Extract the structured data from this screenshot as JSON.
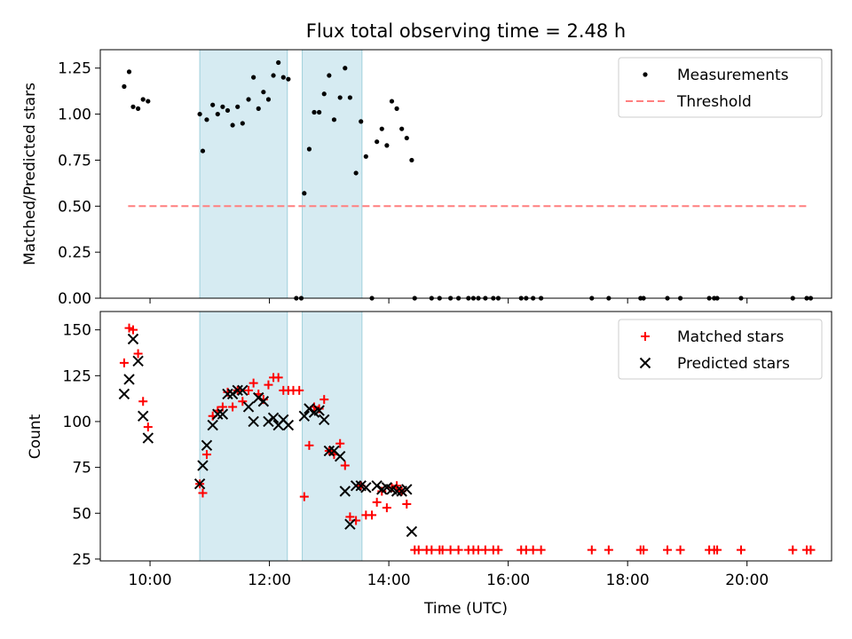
{
  "figure": {
    "title": "Flux total observing time = 2.48 h"
  },
  "chart_data": [
    {
      "type": "scatter",
      "panel": "top",
      "ylabel": "Matched/Predicted stars",
      "xlabel": "",
      "xlim": [
        "09:10",
        "21:25"
      ],
      "ylim": [
        0,
        1.35
      ],
      "y_ticks": [
        "0.00",
        "0.25",
        "0.50",
        "0.75",
        "1.00",
        "1.25"
      ],
      "shaded_intervals": [
        [
          "10:50",
          "12:18"
        ],
        [
          "12:33",
          "13:33"
        ]
      ],
      "legend_position": "top-right",
      "legend": [
        "Measurements",
        "Threshold"
      ],
      "series": [
        {
          "name": "Measurements",
          "marker": "dot",
          "color": "#000000",
          "points": [
            [
              "09:34",
              1.15
            ],
            [
              "09:39",
              1.23
            ],
            [
              "09:43",
              1.04
            ],
            [
              "09:48",
              1.03
            ],
            [
              "09:53",
              1.08
            ],
            [
              "09:58",
              1.07
            ],
            [
              "10:50",
              1.0
            ],
            [
              "10:53",
              0.8
            ],
            [
              "10:57",
              0.97
            ],
            [
              "11:03",
              1.05
            ],
            [
              "11:08",
              1.0
            ],
            [
              "11:13",
              1.04
            ],
            [
              "11:18",
              1.02
            ],
            [
              "11:23",
              0.94
            ],
            [
              "11:28",
              1.04
            ],
            [
              "11:33",
              0.95
            ],
            [
              "11:39",
              1.08
            ],
            [
              "11:44",
              1.2
            ],
            [
              "11:49",
              1.03
            ],
            [
              "11:54",
              1.12
            ],
            [
              "11:59",
              1.08
            ],
            [
              "12:04",
              1.21
            ],
            [
              "12:09",
              1.28
            ],
            [
              "12:14",
              1.2
            ],
            [
              "12:19",
              1.19
            ],
            [
              "12:35",
              0.57
            ],
            [
              "12:40",
              0.81
            ],
            [
              "12:45",
              1.01
            ],
            [
              "12:50",
              1.01
            ],
            [
              "12:55",
              1.11
            ],
            [
              "13:00",
              1.21
            ],
            [
              "13:05",
              0.97
            ],
            [
              "13:11",
              1.09
            ],
            [
              "13:16",
              1.25
            ],
            [
              "13:21",
              1.09
            ],
            [
              "13:27",
              0.68
            ],
            [
              "13:32",
              0.96
            ],
            [
              "13:37",
              0.77
            ],
            [
              "13:48",
              0.85
            ],
            [
              "13:53",
              0.92
            ],
            [
              "13:58",
              0.83
            ],
            [
              "14:03",
              1.07
            ],
            [
              "14:08",
              1.03
            ],
            [
              "14:13",
              0.92
            ],
            [
              "14:18",
              0.87
            ],
            [
              "14:23",
              0.75
            ],
            [
              "12:27",
              0.0
            ],
            [
              "12:32",
              0.0
            ],
            [
              "13:43",
              0.0
            ],
            [
              "14:26",
              0.0
            ],
            [
              "14:43",
              0.0
            ],
            [
              "14:51",
              0.0
            ],
            [
              "15:02",
              0.0
            ],
            [
              "15:10",
              0.0
            ],
            [
              "15:20",
              0.0
            ],
            [
              "15:25",
              0.0
            ],
            [
              "15:30",
              0.0
            ],
            [
              "15:37",
              0.0
            ],
            [
              "15:45",
              0.0
            ],
            [
              "15:50",
              0.0
            ],
            [
              "16:13",
              0.0
            ],
            [
              "16:18",
              0.0
            ],
            [
              "16:25",
              0.0
            ],
            [
              "16:33",
              0.0
            ],
            [
              "17:24",
              0.0
            ],
            [
              "17:41",
              0.0
            ],
            [
              "18:13",
              0.0
            ],
            [
              "18:16",
              0.0
            ],
            [
              "18:40",
              0.0
            ],
            [
              "18:53",
              0.0
            ],
            [
              "19:22",
              0.0
            ],
            [
              "19:27",
              0.0
            ],
            [
              "19:30",
              0.0
            ],
            [
              "19:54",
              0.0
            ],
            [
              "20:46",
              0.0
            ],
            [
              "21:00",
              0.0
            ],
            [
              "21:04",
              0.0
            ]
          ]
        },
        {
          "name": "Threshold",
          "style": "dashed line",
          "color": "#ff7f7f",
          "points": [
            [
              "09:38",
              0.5
            ],
            [
              "21:00",
              0.5
            ]
          ]
        }
      ]
    },
    {
      "type": "scatter",
      "panel": "bottom",
      "ylabel": "Count",
      "xlabel": "Time (UTC)",
      "xlim": [
        "09:10",
        "21:25"
      ],
      "ylim": [
        24,
        160
      ],
      "x_ticks": [
        "10:00",
        "12:00",
        "14:00",
        "16:00",
        "18:00",
        "20:00"
      ],
      "y_ticks": [
        "25",
        "50",
        "75",
        "100",
        "125",
        "150"
      ],
      "shaded_intervals": [
        [
          "10:50",
          "12:18"
        ],
        [
          "12:33",
          "13:33"
        ]
      ],
      "legend_position": "top-right",
      "legend": [
        "Matched stars",
        "Predicted stars"
      ],
      "series": [
        {
          "name": "Matched stars",
          "marker": "plus",
          "color": "#ff0000",
          "points": [
            [
              "09:34",
              132
            ],
            [
              "09:39",
              151
            ],
            [
              "09:43",
              150
            ],
            [
              "09:48",
              137
            ],
            [
              "09:53",
              111
            ],
            [
              "09:58",
              97
            ],
            [
              "10:50",
              66
            ],
            [
              "10:53",
              61
            ],
            [
              "10:57",
              82
            ],
            [
              "11:03",
              103
            ],
            [
              "11:08",
              106
            ],
            [
              "11:13",
              108
            ],
            [
              "11:18",
              116
            ],
            [
              "11:23",
              108
            ],
            [
              "11:28",
              117
            ],
            [
              "11:33",
              111
            ],
            [
              "11:39",
              117
            ],
            [
              "11:44",
              121
            ],
            [
              "11:49",
              115
            ],
            [
              "11:54",
              112
            ],
            [
              "11:59",
              120
            ],
            [
              "12:04",
              124
            ],
            [
              "12:09",
              124
            ],
            [
              "12:14",
              117
            ],
            [
              "12:19",
              117
            ],
            [
              "12:24",
              117
            ],
            [
              "12:30",
              117
            ],
            [
              "12:35",
              59
            ],
            [
              "12:40",
              87
            ],
            [
              "12:45",
              108
            ],
            [
              "12:50",
              107
            ],
            [
              "12:55",
              112
            ],
            [
              "13:00",
              84
            ],
            [
              "13:05",
              82
            ],
            [
              "13:11",
              88
            ],
            [
              "13:16",
              76
            ],
            [
              "13:21",
              48
            ],
            [
              "13:27",
              46
            ],
            [
              "13:32",
              65
            ],
            [
              "13:37",
              49
            ],
            [
              "13:43",
              49
            ],
            [
              "13:48",
              56
            ],
            [
              "13:53",
              62
            ],
            [
              "13:58",
              53
            ],
            [
              "14:03",
              64
            ],
            [
              "14:08",
              65
            ],
            [
              "14:13",
              62
            ],
            [
              "14:18",
              55
            ],
            [
              "14:26",
              30
            ],
            [
              "14:30",
              30
            ],
            [
              "14:38",
              30
            ],
            [
              "14:43",
              30
            ],
            [
              "14:51",
              30
            ],
            [
              "14:54",
              30
            ],
            [
              "15:02",
              30
            ],
            [
              "15:10",
              30
            ],
            [
              "15:20",
              30
            ],
            [
              "15:25",
              30
            ],
            [
              "15:30",
              30
            ],
            [
              "15:37",
              30
            ],
            [
              "15:45",
              30
            ],
            [
              "15:50",
              30
            ],
            [
              "16:13",
              30
            ],
            [
              "16:18",
              30
            ],
            [
              "16:25",
              30
            ],
            [
              "16:33",
              30
            ],
            [
              "17:24",
              30
            ],
            [
              "17:41",
              30
            ],
            [
              "18:13",
              30
            ],
            [
              "18:16",
              30
            ],
            [
              "18:40",
              30
            ],
            [
              "18:53",
              30
            ],
            [
              "19:22",
              30
            ],
            [
              "19:27",
              30
            ],
            [
              "19:30",
              30
            ],
            [
              "19:54",
              30
            ],
            [
              "20:46",
              30
            ],
            [
              "21:00",
              30
            ],
            [
              "21:04",
              30
            ]
          ]
        },
        {
          "name": "Predicted stars",
          "marker": "x",
          "color": "#000000",
          "points": [
            [
              "09:34",
              115
            ],
            [
              "09:39",
              123
            ],
            [
              "09:43",
              145
            ],
            [
              "09:48",
              133
            ],
            [
              "09:53",
              103
            ],
            [
              "09:58",
              91
            ],
            [
              "10:50",
              66
            ],
            [
              "10:53",
              76
            ],
            [
              "10:57",
              87
            ],
            [
              "11:03",
              98
            ],
            [
              "11:08",
              104
            ],
            [
              "11:13",
              104
            ],
            [
              "11:18",
              115
            ],
            [
              "11:23",
              115
            ],
            [
              "11:28",
              117
            ],
            [
              "11:33",
              117
            ],
            [
              "11:39",
              108
            ],
            [
              "11:44",
              100
            ],
            [
              "11:49",
              113
            ],
            [
              "11:54",
              111
            ],
            [
              "11:59",
              100
            ],
            [
              "12:04",
              102
            ],
            [
              "12:09",
              98
            ],
            [
              "12:14",
              101
            ],
            [
              "12:19",
              98
            ],
            [
              "12:35",
              103
            ],
            [
              "12:40",
              107
            ],
            [
              "12:45",
              105
            ],
            [
              "12:50",
              106
            ],
            [
              "12:55",
              101
            ],
            [
              "13:00",
              84
            ],
            [
              "13:05",
              84
            ],
            [
              "13:11",
              81
            ],
            [
              "13:16",
              62
            ],
            [
              "13:21",
              44
            ],
            [
              "13:27",
              65
            ],
            [
              "13:32",
              65
            ],
            [
              "13:37",
              64
            ],
            [
              "13:48",
              65
            ],
            [
              "13:53",
              63
            ],
            [
              "13:58",
              64
            ],
            [
              "14:03",
              63
            ],
            [
              "14:08",
              62
            ],
            [
              "14:13",
              62
            ],
            [
              "14:18",
              63
            ],
            [
              "14:23",
              40
            ]
          ]
        }
      ]
    }
  ]
}
